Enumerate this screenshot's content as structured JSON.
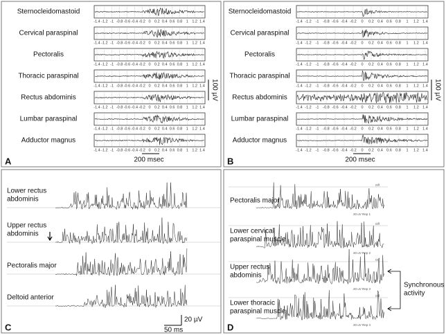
{
  "axis_ticks": [
    "-1.4",
    "-1.2",
    "-1",
    "-0.8",
    "-0.6",
    "-0.4",
    "-0.2",
    "0",
    "0.2",
    "0.4",
    "0.6",
    "0.8",
    "1",
    "1.2",
    "1.4"
  ],
  "panels": [
    {
      "letter": "A",
      "rows": [
        "Sternocleidomastoid",
        "Cervical paraspinal",
        "Pectoralis",
        "Thoracic paraspinal",
        "Rectus abdominis",
        "Lumbar paraspinal",
        "Adductor magnus"
      ],
      "scale_v": "100 µV",
      "scale_t": "200 msec"
    },
    {
      "letter": "B",
      "rows": [
        "Sternocleidomastoid",
        "Cervical paraspinal",
        "Pectoralis",
        "Thoracic paraspinal",
        "Rectus abdominis",
        "Lumbar paraspinal",
        "Adductor magnus"
      ],
      "scale_v": "100 µV",
      "scale_t": "200 msec"
    },
    {
      "letter": "C",
      "rows": [
        [
          "Lower rectus",
          "abdominis"
        ],
        [
          "Upper rectus",
          "abdominis"
        ],
        [
          "Pectoralis major"
        ],
        [
          "Deltoid anterior"
        ]
      ],
      "scale_v": "20 µV",
      "scale_t": "50 ms"
    },
    {
      "letter": "D",
      "rows": [
        [
          "Pectoralis major"
        ],
        [
          "Lower cervical",
          "paraspinal muscle"
        ],
        [
          "Upper rectus",
          "abdominis"
        ],
        [
          "Lower thoracic",
          "paraspinal muscle"
        ]
      ],
      "off_label": "Off",
      "rep_labels": [
        "20 uV   Rep 1",
        "20 uV   Rep 2",
        "20 uV   Rep 3",
        "20 uV   Rep 4"
      ],
      "annotation": [
        "Synchronous",
        "activity"
      ]
    }
  ]
}
